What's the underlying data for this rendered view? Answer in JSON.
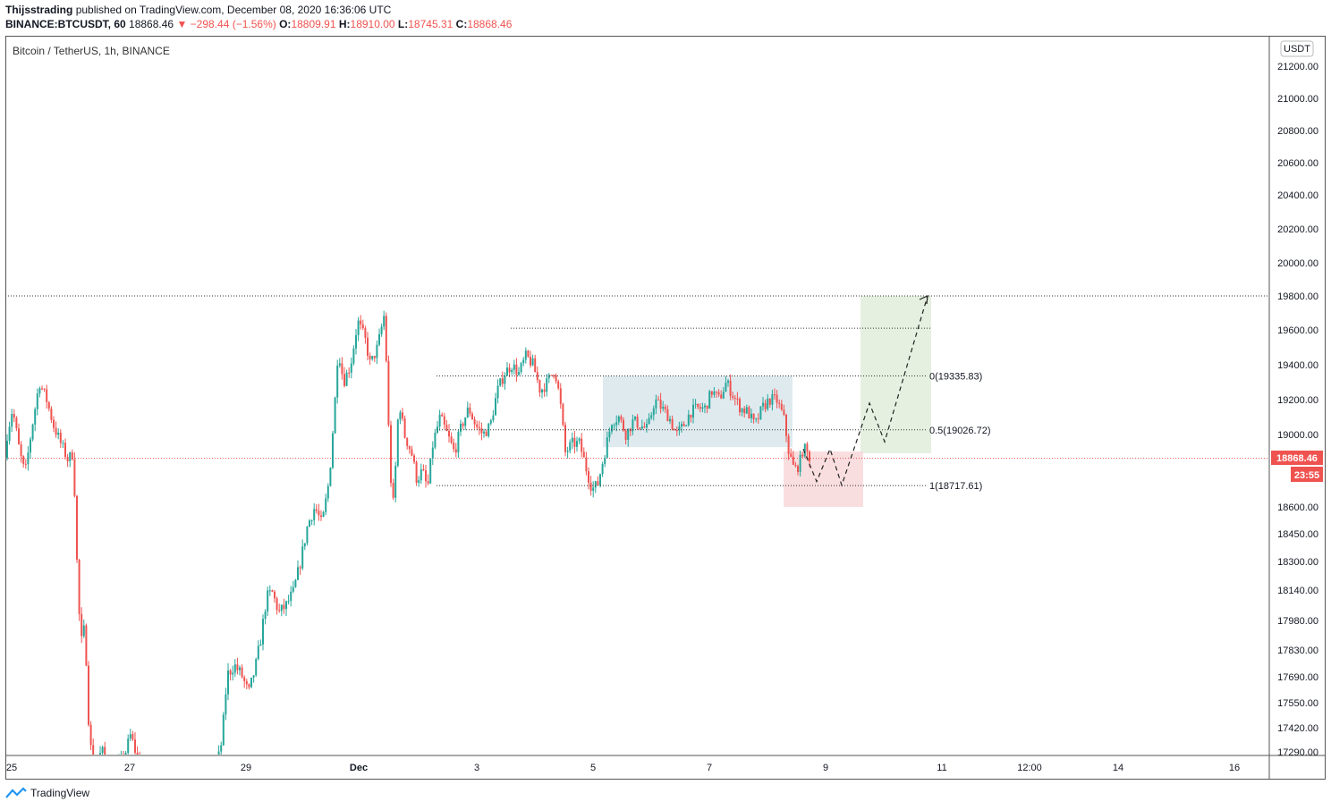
{
  "header": {
    "author": "Thijsstrading",
    "published": "published on TradingView.com, December 08, 2020 16:36:06 UTC",
    "symbol": "BINANCE:BTCUSDT, 60",
    "last": "18868.46",
    "change": "−298.44 (−1.56%)",
    "o_label": "O:",
    "o_value": "18809.91",
    "h_label": "H:",
    "h_value": "18910.00",
    "l_label": "L:",
    "l_value": "18745.31",
    "c_label": "C:",
    "c_value": "18868.46"
  },
  "legend_title": "Bitcoin / TetherUS, 1h, BINANCE",
  "currency_badge": "USDT",
  "price_label": "18868.46",
  "countdown_label": "23:55",
  "footer_brand": "TradingView",
  "colors": {
    "up": "#26a69a",
    "down": "#ef5350",
    "range_box": "#d4e3ea",
    "target_box": "#dcebd5",
    "stop_box": "#f8d6d8"
  },
  "chart_data": {
    "type": "candlestick",
    "title": "Bitcoin / TetherUS, 1h, BINANCE",
    "x_tick_labels": [
      "25",
      "27",
      "29",
      "Dec",
      "3",
      "5",
      "7",
      "9",
      "11",
      "12:00",
      "14",
      "16"
    ],
    "y_tick_labels": [
      "21200.00",
      "21000.00",
      "20800.00",
      "20600.00",
      "20400.00",
      "20200.00",
      "20000.00",
      "19800.00",
      "19600.00",
      "19400.00",
      "19200.00",
      "19000.00",
      "18600.00",
      "18450.00",
      "18300.00",
      "18140.00",
      "17980.00",
      "17830.00",
      "17690.00",
      "17550.00",
      "17420.00",
      "17290.00"
    ],
    "fib_levels": [
      {
        "label": "0(19335.83)",
        "value": 19335.83
      },
      {
        "label": "0.5(19026.72)",
        "value": 19026.72
      },
      {
        "label": "1(18717.61)",
        "value": 18717.61
      }
    ],
    "horizontal_lines": [
      19800.0,
      19610.0
    ],
    "last_price": 18868.46,
    "projection_path": [
      18920,
      18740,
      18920,
      18720,
      19180,
      18960,
      19800
    ]
  }
}
